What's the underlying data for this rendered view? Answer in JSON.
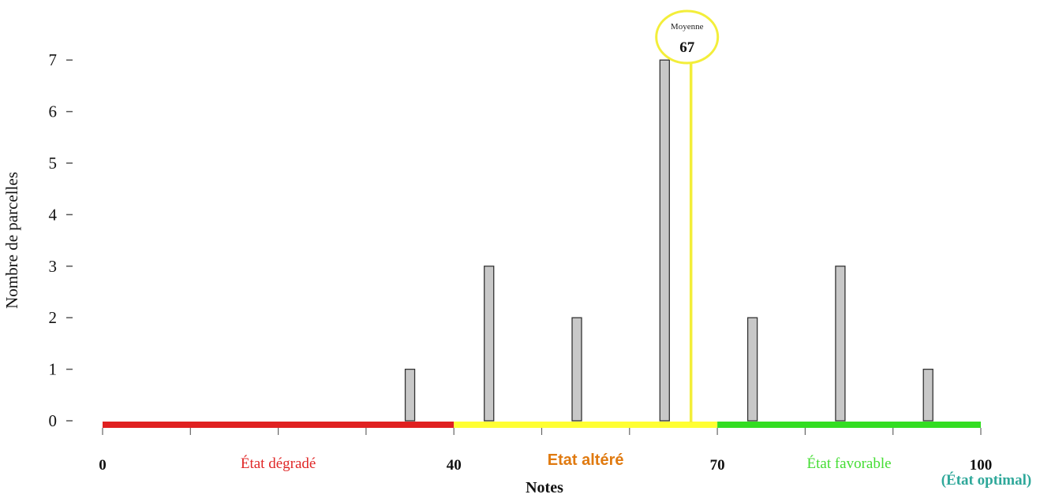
{
  "chart_data": {
    "type": "bar",
    "xlabel": "Notes",
    "ylabel": "Nombre de parcelles",
    "xlim": [
      0,
      100
    ],
    "ylim": [
      0,
      7
    ],
    "yticks": [
      "0",
      "1",
      "2",
      "3",
      "4",
      "5",
      "6",
      "7"
    ],
    "xtick_labels": [
      {
        "value": 0,
        "label": "0"
      },
      {
        "value": 40,
        "label": "40"
      },
      {
        "value": 70,
        "label": "70"
      },
      {
        "value": 100,
        "label": "100"
      }
    ],
    "x": [
      35,
      44,
      54,
      64,
      74,
      84,
      94
    ],
    "values": [
      1,
      3,
      2,
      7,
      2,
      3,
      1
    ],
    "bar_color": "#c8c8c8",
    "zones": [
      {
        "from": 0,
        "to": 40,
        "label": "État dégradé",
        "color": "#e02020",
        "label_color": "#e02828"
      },
      {
        "from": 40,
        "to": 70,
        "label": "Etat altéré",
        "color": "#ffff33",
        "label_color": "#e07a10"
      },
      {
        "from": 70,
        "to": 100,
        "label": "État favorable",
        "color": "#33dd22",
        "label_color": "#44dd33"
      }
    ],
    "optimal_label": "(État optimal)",
    "optimal_color": "#2fa89a",
    "mean": {
      "label": "Moyenne",
      "value": 67,
      "color": "#f3ee3a"
    }
  }
}
